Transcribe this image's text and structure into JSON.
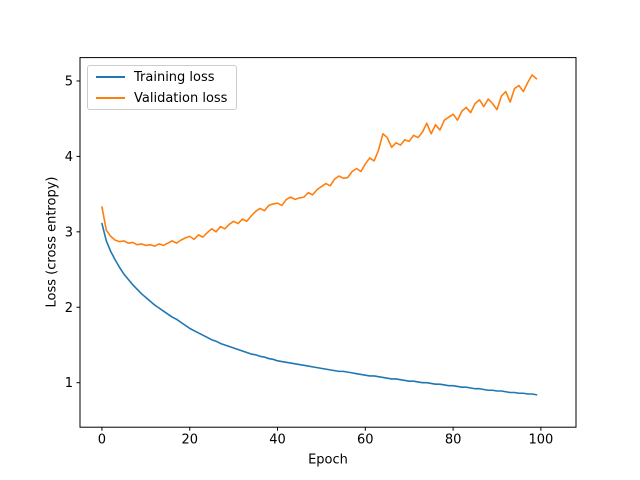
{
  "chart_data": {
    "type": "line",
    "title": "",
    "xlabel": "Epoch",
    "ylabel": "Loss (cross entropy)",
    "grid": false,
    "legend_position": "upper left",
    "xlim": [
      -5,
      108
    ],
    "ylim": [
      0.41,
      5.31
    ],
    "xticks": [
      0,
      20,
      40,
      60,
      80,
      100
    ],
    "yticks": [
      1,
      2,
      3,
      4,
      5
    ],
    "x": [
      0,
      1,
      2,
      3,
      4,
      5,
      6,
      7,
      8,
      9,
      10,
      11,
      12,
      13,
      14,
      15,
      16,
      17,
      18,
      19,
      20,
      21,
      22,
      23,
      24,
      25,
      26,
      27,
      28,
      29,
      30,
      31,
      32,
      33,
      34,
      35,
      36,
      37,
      38,
      39,
      40,
      41,
      42,
      43,
      44,
      45,
      46,
      47,
      48,
      49,
      50,
      51,
      52,
      53,
      54,
      55,
      56,
      57,
      58,
      59,
      60,
      61,
      62,
      63,
      64,
      65,
      66,
      67,
      68,
      69,
      70,
      71,
      72,
      73,
      74,
      75,
      76,
      77,
      78,
      79,
      80,
      81,
      82,
      83,
      84,
      85,
      86,
      87,
      88,
      89,
      90,
      91,
      92,
      93,
      94,
      95,
      96,
      97,
      98,
      99
    ],
    "series": [
      {
        "name": "Training loss",
        "color": "#1f77b4",
        "values": [
          3.11,
          2.88,
          2.74,
          2.63,
          2.53,
          2.44,
          2.37,
          2.3,
          2.24,
          2.18,
          2.13,
          2.08,
          2.03,
          1.99,
          1.95,
          1.91,
          1.87,
          1.84,
          1.8,
          1.76,
          1.72,
          1.69,
          1.66,
          1.63,
          1.6,
          1.57,
          1.55,
          1.52,
          1.5,
          1.48,
          1.46,
          1.44,
          1.42,
          1.4,
          1.38,
          1.37,
          1.35,
          1.34,
          1.32,
          1.31,
          1.29,
          1.28,
          1.27,
          1.26,
          1.25,
          1.24,
          1.23,
          1.22,
          1.21,
          1.2,
          1.19,
          1.18,
          1.17,
          1.16,
          1.15,
          1.15,
          1.14,
          1.13,
          1.12,
          1.11,
          1.1,
          1.09,
          1.09,
          1.08,
          1.07,
          1.06,
          1.05,
          1.05,
          1.04,
          1.03,
          1.02,
          1.02,
          1.01,
          1.0,
          1.0,
          0.99,
          0.98,
          0.98,
          0.97,
          0.96,
          0.96,
          0.95,
          0.94,
          0.94,
          0.93,
          0.92,
          0.92,
          0.91,
          0.9,
          0.9,
          0.89,
          0.89,
          0.88,
          0.87,
          0.87,
          0.86,
          0.86,
          0.85,
          0.85,
          0.84
        ]
      },
      {
        "name": "Validation loss",
        "color": "#ff7f0e",
        "values": [
          3.33,
          3.02,
          2.94,
          2.89,
          2.87,
          2.88,
          2.85,
          2.86,
          2.83,
          2.84,
          2.82,
          2.83,
          2.81,
          2.84,
          2.82,
          2.85,
          2.88,
          2.85,
          2.89,
          2.92,
          2.94,
          2.9,
          2.96,
          2.93,
          2.99,
          3.04,
          3.0,
          3.07,
          3.04,
          3.1,
          3.14,
          3.11,
          3.17,
          3.14,
          3.21,
          3.27,
          3.31,
          3.28,
          3.35,
          3.37,
          3.38,
          3.35,
          3.43,
          3.46,
          3.43,
          3.45,
          3.46,
          3.52,
          3.49,
          3.56,
          3.6,
          3.64,
          3.61,
          3.7,
          3.74,
          3.71,
          3.72,
          3.8,
          3.84,
          3.8,
          3.9,
          3.98,
          3.94,
          4.08,
          4.3,
          4.25,
          4.12,
          4.18,
          4.15,
          4.22,
          4.2,
          4.28,
          4.25,
          4.32,
          4.44,
          4.3,
          4.42,
          4.35,
          4.48,
          4.52,
          4.56,
          4.48,
          4.6,
          4.65,
          4.58,
          4.7,
          4.75,
          4.66,
          4.76,
          4.7,
          4.62,
          4.8,
          4.86,
          4.72,
          4.9,
          4.94,
          4.86,
          4.98,
          5.08,
          5.03
        ]
      }
    ]
  },
  "colors": {
    "training": "#1f77b4",
    "validation": "#ff7f0e",
    "spine": "#000000",
    "background": "#ffffff",
    "legend_border": "#cccccc"
  }
}
